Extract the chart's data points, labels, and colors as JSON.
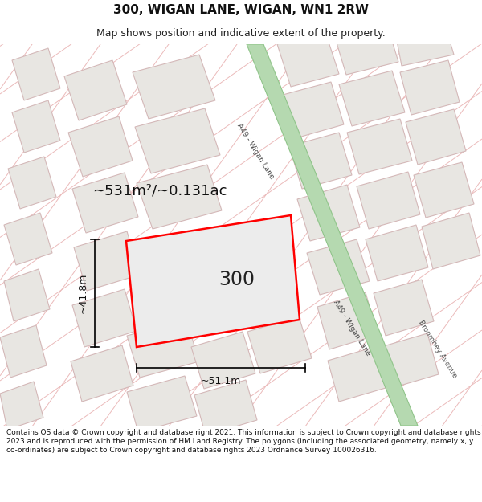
{
  "title": "300, WIGAN LANE, WIGAN, WN1 2RW",
  "subtitle": "Map shows position and indicative extent of the property.",
  "footer": "Contains OS data © Crown copyright and database right 2021. This information is subject to Crown copyright and database rights 2023 and is reproduced with the permission of HM Land Registry. The polygons (including the associated geometry, namely x, y co-ordinates) are subject to Crown copyright and database rights 2023 Ordnance Survey 100026316.",
  "map_bg": "#f9f8f6",
  "road_green": "#b5d9b0",
  "road_green_edge": "#90c48a",
  "building_fill": "#e8e6e2",
  "building_stroke": "#d4b8b8",
  "plot_fill": "#f0eeea",
  "plot_stroke": "#ff0000",
  "street_color": "#ebbaba",
  "area_text": "~531m²/~0.131ac",
  "number_text": "300",
  "dim_width": "~51.1m",
  "dim_height": "~41.8m",
  "road_label1": "A49 - Wigan Lane",
  "road_label2": "A49 - Wigan Lane",
  "road_label3": "Broomhey Avenue",
  "title_fontsize": 11,
  "subtitle_fontsize": 9,
  "footer_fontsize": 6.5
}
